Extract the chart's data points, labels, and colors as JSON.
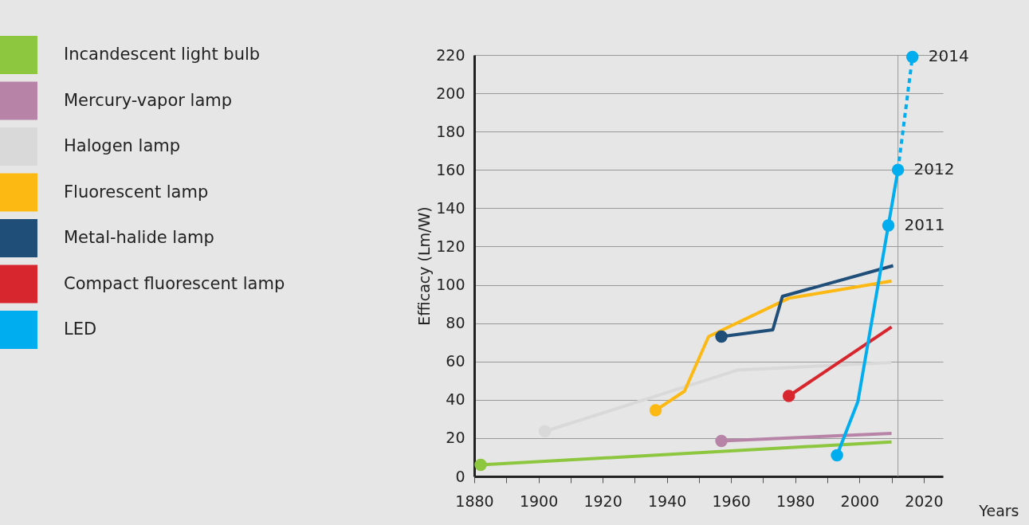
{
  "chart_data": {
    "type": "line",
    "xlabel": "Years",
    "ylabel": "Efficacy (Lm/W)",
    "xlim": [
      1880,
      2026
    ],
    "ylim": [
      0,
      220
    ],
    "xticks": [
      1880,
      {
        "value": 1890,
        "label": null
      },
      1900,
      {
        "value": 1910,
        "label": null
      },
      1920,
      {
        "value": 1930,
        "label": null
      },
      1940,
      {
        "value": 1950,
        "label": null
      },
      1960,
      {
        "value": 1970,
        "label": null
      },
      1980,
      {
        "value": 1990,
        "label": null
      },
      2000,
      {
        "value": 2010,
        "label": null
      },
      2020
    ],
    "yticks": [
      0,
      20,
      40,
      60,
      80,
      100,
      120,
      140,
      160,
      180,
      200,
      220
    ],
    "grid": "y",
    "legend": "left",
    "line_style": "solid",
    "series": [
      {
        "name": "Incandescent light bulb",
        "color": "#8dc63f",
        "x": [
          1882,
          2010
        ],
        "values": [
          6,
          18
        ]
      },
      {
        "name": "Mercury-vapor lamp",
        "color": "#b784a7",
        "x": [
          1957,
          2010
        ],
        "values": [
          18.5,
          22.5
        ]
      },
      {
        "name": "Halogen lamp",
        "color": "#d9d9d9",
        "x": [
          1902,
          1962,
          2010
        ],
        "values": [
          23.5,
          55.5,
          59.5
        ]
      },
      {
        "name": "Fluorescent lamp",
        "color": "#fdb913",
        "x": [
          1936.5,
          1945.5,
          1953,
          1978,
          2010
        ],
        "values": [
          34.5,
          44.5,
          73,
          93,
          102
        ]
      },
      {
        "name": "Metal-halide lamp",
        "color": "#1f4e79",
        "x": [
          1957,
          1973,
          1976,
          2010.5
        ],
        "values": [
          73,
          76.5,
          94,
          110
        ]
      },
      {
        "name": "Compact fluorescent lamp",
        "color": "#d7262e",
        "x": [
          1978,
          2010
        ],
        "values": [
          42,
          78
        ]
      },
      {
        "name": "LED",
        "color": "#00aeef",
        "x": [
          1993,
          1999.5,
          2009,
          2012
        ],
        "values": [
          11,
          39,
          131,
          160
        ]
      },
      {
        "color": "#00aeef",
        "line_style": "dashed",
        "x": [
          2012,
          2016.5
        ],
        "values": [
          160,
          219
        ]
      },
      {
        "type": "scatter",
        "x": [
          1882,
          1957,
          1902,
          1936.5,
          1957,
          1978,
          1993,
          2009,
          2012,
          2016.5
        ],
        "values": [
          6,
          18.5,
          23.5,
          34.5,
          73,
          42,
          11,
          131,
          160,
          219
        ],
        "colors": [
          "#8dc63f",
          "#b784a7",
          "#d9d9d9",
          "#fdb913",
          "#1f4e79",
          "#d7262e",
          "#00aeef",
          "#00aeef",
          "#00aeef",
          "#00aeef"
        ]
      }
    ],
    "ref_lines": [
      {
        "axis": "x",
        "value": 2012,
        "color": "#999999"
      }
    ],
    "annotations": [
      {
        "text": "2011",
        "x": 2009,
        "y": 131
      },
      {
        "text": "2012",
        "x": 2012,
        "y": 160
      },
      {
        "text": "2014",
        "x": 2016.5,
        "y": 219
      }
    ]
  }
}
